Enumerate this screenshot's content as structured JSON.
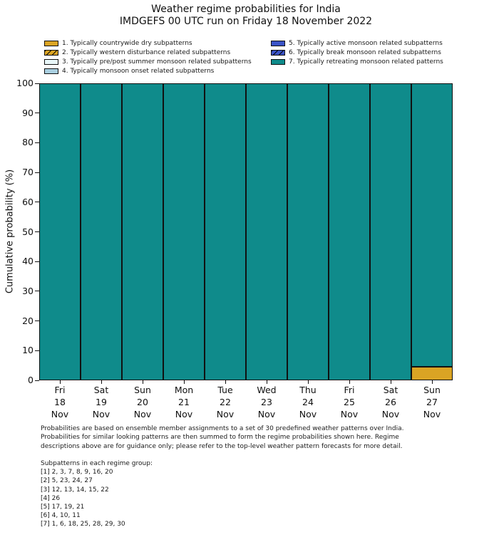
{
  "chart_data": {
    "type": "bar",
    "stacked": true,
    "title": "Weather regime probabilities for India",
    "subtitle": "IMDGEFS 00 UTC run on Friday 18 November 2022",
    "ylabel": "Cumulative probability (%)",
    "ylim": [
      0,
      100
    ],
    "yticks": [
      0,
      10,
      20,
      30,
      40,
      50,
      60,
      70,
      80,
      90,
      100
    ],
    "grid": false,
    "legend_position": "top, two columns, no frame",
    "categories": [
      [
        "Fri",
        "18",
        "Nov"
      ],
      [
        "Sat",
        "19",
        "Nov"
      ],
      [
        "Sun",
        "20",
        "Nov"
      ],
      [
        "Mon",
        "21",
        "Nov"
      ],
      [
        "Tue",
        "22",
        "Nov"
      ],
      [
        "Wed",
        "23",
        "Nov"
      ],
      [
        "Thu",
        "24",
        "Nov"
      ],
      [
        "Fri",
        "25",
        "Nov"
      ],
      [
        "Sat",
        "26",
        "Nov"
      ],
      [
        "Sun",
        "27",
        "Nov"
      ]
    ],
    "series": [
      {
        "name": "1. Typically countrywide dry subpatterns",
        "color": "#DAA424",
        "hatch": false,
        "values": [
          0,
          0,
          0,
          0,
          0,
          0,
          0,
          0,
          0,
          4.5
        ]
      },
      {
        "name": "2. Typically western disturbance related subpatterns",
        "color": "#DAA424",
        "hatch": true,
        "values": [
          0,
          0,
          0,
          0,
          0,
          0,
          0,
          0,
          0,
          0
        ]
      },
      {
        "name": "3. Typically pre/post summer monsoon related subpatterns",
        "color": "#E9F7F9",
        "hatch": false,
        "values": [
          0,
          0,
          0,
          0,
          0,
          0,
          0,
          0,
          0,
          0
        ]
      },
      {
        "name": "4. Typically monsoon onset related subpatterns",
        "color": "#A9CFE0",
        "hatch": false,
        "values": [
          0,
          0,
          0,
          0,
          0,
          0,
          0,
          0,
          0,
          0
        ]
      },
      {
        "name": "5. Typically active monsoon related subpatterns",
        "color": "#3A53C6",
        "hatch": false,
        "values": [
          0,
          0,
          0,
          0,
          0,
          0,
          0,
          0,
          0,
          0
        ]
      },
      {
        "name": "6. Typically break monsoon related subpatterns",
        "color": "#3A53C6",
        "hatch": true,
        "values": [
          0,
          0,
          0,
          0,
          0,
          0,
          0,
          0,
          0,
          0
        ]
      },
      {
        "name": "7. Typically retreating monsoon related patterns",
        "color": "#0F8B8B",
        "hatch": false,
        "values": [
          100,
          100,
          100,
          100,
          100,
          100,
          100,
          100,
          100,
          95.5
        ]
      }
    ]
  },
  "footnote": "Probabilities are based on ensemble member assignments to a set of 30 predefined weather patterns over India.\nProbabilities for similar looking patterns are then summed to form the regime probabilities shown here. Regime\ndescriptions above are for guidance only; please refer to the top-level weather pattern forecasts for more detail.",
  "subpatterns": {
    "heading": "Subpatterns in each regime group:",
    "groups": [
      "[1] 2, 3, 7, 8, 9, 16, 20",
      "[2] 5, 23, 24, 27",
      "[3] 12, 13, 14, 15, 22",
      "[4] 26",
      "[5] 17, 19, 21",
      "[6] 4, 10, 11",
      "[7] 1, 6, 18, 25, 28, 29, 30"
    ]
  }
}
